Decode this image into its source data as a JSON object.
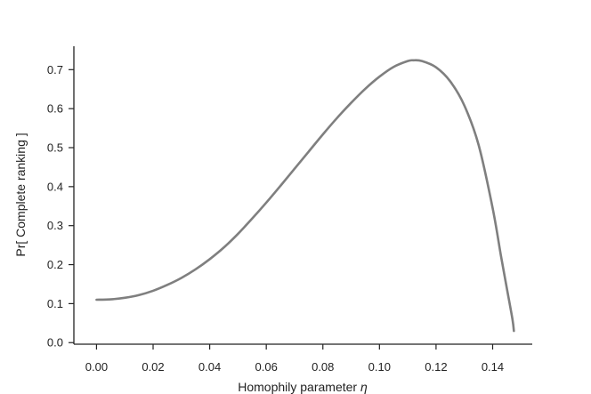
{
  "chart_data": {
    "type": "line",
    "title": "",
    "xlabel": "Homophily parameter",
    "xlabel_symbol": "η",
    "ylabel": "Pr[ Complete ranking ]",
    "xlim": [
      -0.008,
      0.154
    ],
    "ylim": [
      -0.004,
      0.76
    ],
    "xticks": [
      "0.00",
      "0.02",
      "0.04",
      "0.06",
      "0.08",
      "0.10",
      "0.12",
      "0.14"
    ],
    "yticks": [
      "0.0",
      "0.1",
      "0.2",
      "0.3",
      "0.4",
      "0.5",
      "0.6",
      "0.7"
    ],
    "grid": false,
    "legend": "none",
    "series": [
      {
        "color": "#7f7f7f",
        "x": [
          0.0,
          0.005,
          0.01,
          0.015,
          0.02,
          0.025,
          0.03,
          0.035,
          0.04,
          0.045,
          0.05,
          0.055,
          0.06,
          0.065,
          0.07,
          0.075,
          0.08,
          0.085,
          0.09,
          0.095,
          0.1,
          0.105,
          0.11,
          0.112,
          0.115,
          0.12,
          0.125,
          0.13,
          0.135,
          0.14,
          0.143,
          0.145,
          0.147,
          0.1475
        ],
        "y": [
          0.11,
          0.111,
          0.115,
          0.122,
          0.133,
          0.148,
          0.166,
          0.188,
          0.214,
          0.244,
          0.279,
          0.318,
          0.359,
          0.402,
          0.446,
          0.49,
          0.534,
          0.576,
          0.615,
          0.651,
          0.682,
          0.707,
          0.722,
          0.724,
          0.722,
          0.706,
          0.67,
          0.608,
          0.508,
          0.345,
          0.22,
          0.14,
          0.06,
          0.03
        ]
      }
    ]
  }
}
